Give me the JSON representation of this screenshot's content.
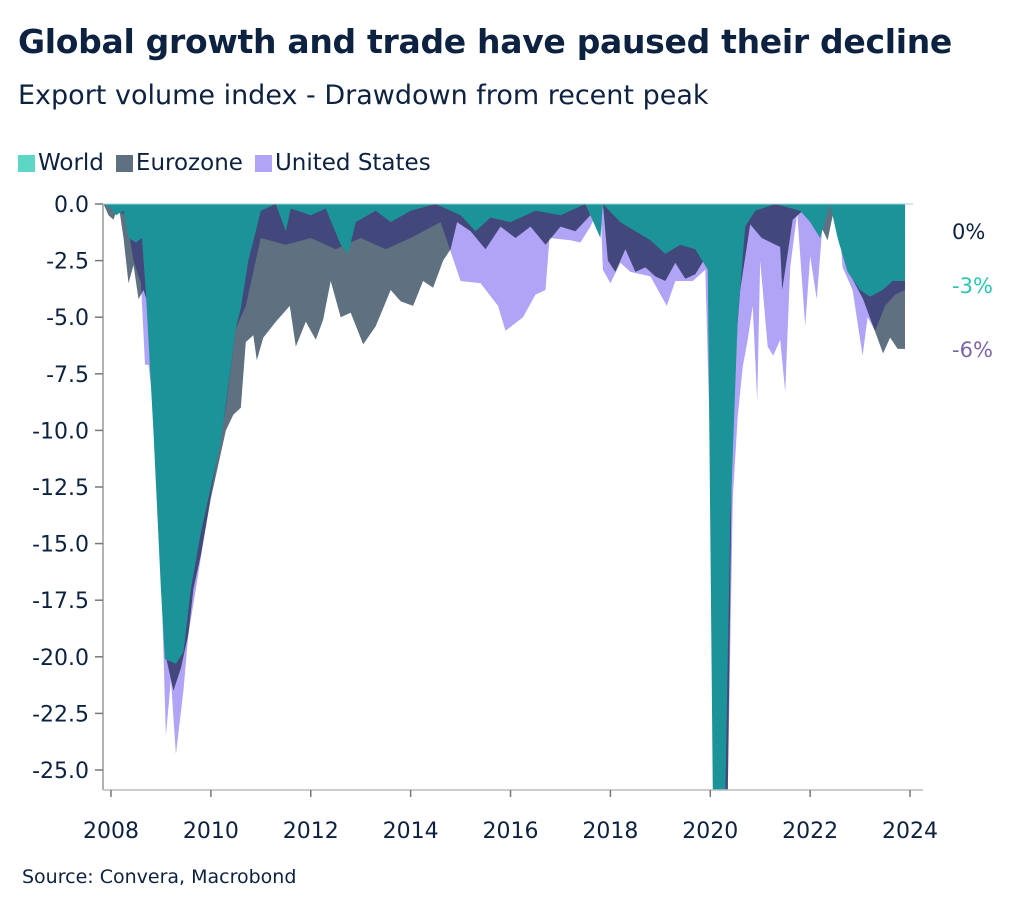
{
  "title": "Global growth and trade have paused their decline",
  "subtitle": "Export volume index - Drawdown from recent peak",
  "source": "Source: Convera, Macrobond",
  "end_labels": [
    {
      "text": "0%",
      "color": "#0d2240"
    },
    {
      "text": "-3%",
      "color": "#2cc6b0"
    },
    {
      "text": "-6%",
      "color": "#7d66a8"
    }
  ],
  "chart_data": {
    "type": "area",
    "title": "Global growth and trade have paused their decline",
    "subtitle": "Export volume index - Drawdown from recent peak",
    "xlabel": "",
    "ylabel": "",
    "xlim": [
      2007.85,
      2024.2
    ],
    "ylim": [
      -25.9,
      0
    ],
    "grid": false,
    "legend_position": "top-left",
    "x_ticks": [
      "2008",
      "2010",
      "2012",
      "2014",
      "2016",
      "2018",
      "2020",
      "2022",
      "2024"
    ],
    "y_ticks": [
      "0.0",
      "-2.5",
      "-5.0",
      "-7.5",
      "-10.0",
      "-12.5",
      "-15.0",
      "-17.5",
      "-20.0",
      "-22.5",
      "-25.0"
    ],
    "series": [
      {
        "name": "World",
        "legend_color": "#5ed6c6",
        "fill": "#1c9399",
        "points": [
          [
            2007.85,
            0
          ],
          [
            2008.0,
            -0.2
          ],
          [
            2008.1,
            -0.5
          ],
          [
            2008.25,
            -0.3
          ],
          [
            2008.35,
            -1.5
          ],
          [
            2008.5,
            -1.7
          ],
          [
            2008.62,
            -1.5
          ],
          [
            2008.7,
            -4
          ],
          [
            2008.85,
            -10
          ],
          [
            2009.0,
            -17
          ],
          [
            2009.08,
            -20.1
          ],
          [
            2009.3,
            -20.3
          ],
          [
            2009.45,
            -19.8
          ],
          [
            2009.6,
            -17
          ],
          [
            2009.8,
            -14.5
          ],
          [
            2010.0,
            -12.5
          ],
          [
            2010.2,
            -10.5
          ],
          [
            2010.35,
            -8
          ],
          [
            2010.5,
            -5.5
          ],
          [
            2010.6,
            -4.6
          ],
          [
            2010.75,
            -2.5
          ],
          [
            2010.9,
            -1.2
          ],
          [
            2011.0,
            -0.3
          ],
          [
            2011.3,
            0
          ],
          [
            2011.5,
            -1.2
          ],
          [
            2011.6,
            -0.2
          ],
          [
            2012.0,
            -0.5
          ],
          [
            2012.3,
            -0.2
          ],
          [
            2012.6,
            -1.8
          ],
          [
            2012.75,
            -2.2
          ],
          [
            2012.9,
            -0.8
          ],
          [
            2013.3,
            -0.3
          ],
          [
            2013.6,
            -0.8
          ],
          [
            2014.0,
            -0.3
          ],
          [
            2014.5,
            0
          ],
          [
            2015.0,
            -0.5
          ],
          [
            2015.3,
            -1.2
          ],
          [
            2015.6,
            -0.6
          ],
          [
            2016.0,
            -0.8
          ],
          [
            2016.5,
            -0.3
          ],
          [
            2017.0,
            -0.5
          ],
          [
            2017.5,
            0
          ],
          [
            2017.8,
            -1.5
          ],
          [
            2017.85,
            0
          ],
          [
            2018.2,
            -0.8
          ],
          [
            2018.5,
            -1.2
          ],
          [
            2018.8,
            -1.6
          ],
          [
            2019.1,
            -2.2
          ],
          [
            2019.4,
            -1.8
          ],
          [
            2019.7,
            -2.0
          ],
          [
            2019.95,
            -2.9
          ],
          [
            2020.05,
            -26
          ],
          [
            2020.3,
            -26
          ],
          [
            2020.4,
            -14
          ],
          [
            2020.55,
            -5.1
          ],
          [
            2020.7,
            -1
          ],
          [
            2020.9,
            -0.3
          ],
          [
            2021.3,
            0
          ],
          [
            2021.8,
            -0.3
          ],
          [
            2022.0,
            -0.8
          ],
          [
            2022.2,
            -1.5
          ],
          [
            2022.4,
            0
          ],
          [
            2022.55,
            -1.5
          ],
          [
            2022.75,
            -3
          ],
          [
            2023.0,
            -3.8
          ],
          [
            2023.2,
            -4.1
          ],
          [
            2023.45,
            -3.8
          ],
          [
            2023.65,
            -3.4
          ],
          [
            2023.9,
            -3.4
          ]
        ]
      },
      {
        "name": "Eurozone",
        "legend_color": "#5f7180",
        "fill": "#5f7180",
        "points": [
          [
            2007.85,
            0
          ],
          [
            2007.95,
            -0.5
          ],
          [
            2008.05,
            -0.7
          ],
          [
            2008.15,
            0
          ],
          [
            2008.25,
            -1.5
          ],
          [
            2008.35,
            -3.5
          ],
          [
            2008.45,
            -2.7
          ],
          [
            2008.55,
            -4.2
          ],
          [
            2008.65,
            -3.8
          ],
          [
            2008.75,
            -4.5
          ],
          [
            2008.85,
            -8
          ],
          [
            2009.0,
            -15
          ],
          [
            2009.1,
            -20
          ],
          [
            2009.25,
            -21.5
          ],
          [
            2009.4,
            -20.5
          ],
          [
            2009.55,
            -19
          ],
          [
            2009.65,
            -17
          ],
          [
            2009.8,
            -15.5
          ],
          [
            2010.0,
            -13
          ],
          [
            2010.15,
            -11.5
          ],
          [
            2010.3,
            -10
          ],
          [
            2010.45,
            -9.3
          ],
          [
            2010.6,
            -9
          ],
          [
            2010.7,
            -6.1
          ],
          [
            2010.85,
            -5.8
          ],
          [
            2010.92,
            -6.9
          ],
          [
            2011.05,
            -5.9
          ],
          [
            2011.3,
            -5.2
          ],
          [
            2011.58,
            -4.5
          ],
          [
            2011.7,
            -6.3
          ],
          [
            2011.9,
            -5.2
          ],
          [
            2012.1,
            -6.0
          ],
          [
            2012.25,
            -5.1
          ],
          [
            2012.4,
            -3.4
          ],
          [
            2012.6,
            -5.0
          ],
          [
            2012.8,
            -4.8
          ],
          [
            2013.05,
            -6.2
          ],
          [
            2013.3,
            -5.4
          ],
          [
            2013.6,
            -3.8
          ],
          [
            2013.8,
            -4.3
          ],
          [
            2014.05,
            -4.5
          ],
          [
            2014.25,
            -3.4
          ],
          [
            2014.45,
            -3.7
          ],
          [
            2014.65,
            -2.5
          ],
          [
            2014.8,
            -2
          ],
          [
            2014.93,
            -0.8
          ],
          [
            2015.2,
            -1.2
          ],
          [
            2015.5,
            -2
          ],
          [
            2015.8,
            -1
          ],
          [
            2016.1,
            -1.5
          ],
          [
            2016.4,
            -1
          ],
          [
            2016.7,
            -1.8
          ],
          [
            2017.0,
            -1
          ],
          [
            2017.3,
            -1.2
          ],
          [
            2017.6,
            -0.5
          ],
          [
            2017.85,
            0
          ],
          [
            2017.95,
            -2.5
          ],
          [
            2018.1,
            -3
          ],
          [
            2018.3,
            -2
          ],
          [
            2018.5,
            -3
          ],
          [
            2018.7,
            -2.8
          ],
          [
            2018.9,
            -3.2
          ],
          [
            2019.1,
            -3.4
          ],
          [
            2019.3,
            -2.6
          ],
          [
            2019.5,
            -3.3
          ],
          [
            2019.7,
            -3.1
          ],
          [
            2019.95,
            -2.2
          ],
          [
            2020.05,
            -20
          ],
          [
            2020.25,
            -26
          ],
          [
            2020.35,
            -26
          ],
          [
            2020.45,
            -8
          ],
          [
            2020.6,
            -3.8
          ],
          [
            2020.8,
            -0.9
          ],
          [
            2021.03,
            -1.5
          ],
          [
            2021.4,
            -1.9
          ],
          [
            2021.44,
            -3.8
          ],
          [
            2021.65,
            -0.7
          ],
          [
            2022.0,
            0
          ],
          [
            2022.35,
            -1.6
          ],
          [
            2022.5,
            0
          ],
          [
            2022.75,
            -2.9
          ],
          [
            2023.06,
            -4.2
          ],
          [
            2023.26,
            -5.4
          ],
          [
            2023.46,
            -6.6
          ],
          [
            2023.6,
            -5.9
          ],
          [
            2023.75,
            -6.4
          ],
          [
            2023.9,
            -6.4
          ]
        ]
      },
      {
        "name": "United States",
        "legend_color": "#b1a3f5",
        "fill": "#b1a3f5",
        "points": [
          [
            2007.85,
            0
          ],
          [
            2008.3,
            -0.5
          ],
          [
            2008.45,
            -2.5
          ],
          [
            2008.6,
            -3.5
          ],
          [
            2008.68,
            -7.1
          ],
          [
            2008.75,
            -7.1
          ],
          [
            2008.85,
            -9
          ],
          [
            2009.0,
            -16
          ],
          [
            2009.1,
            -23.5
          ],
          [
            2009.2,
            -21
          ],
          [
            2009.3,
            -24.3
          ],
          [
            2009.45,
            -21.5
          ],
          [
            2009.55,
            -19
          ],
          [
            2009.7,
            -17
          ],
          [
            2010.0,
            -12.8
          ],
          [
            2010.3,
            -9
          ],
          [
            2010.5,
            -5.5
          ],
          [
            2010.7,
            -4.5
          ],
          [
            2011.0,
            -1.5
          ],
          [
            2011.5,
            -1.8
          ],
          [
            2012.0,
            -1.5
          ],
          [
            2012.5,
            -2
          ],
          [
            2013.0,
            -1.5
          ],
          [
            2013.5,
            -2
          ],
          [
            2014.0,
            -1.5
          ],
          [
            2014.6,
            -0.8
          ],
          [
            2015.0,
            -3.4
          ],
          [
            2015.4,
            -3.5
          ],
          [
            2015.75,
            -4.5
          ],
          [
            2015.9,
            -5.6
          ],
          [
            2016.25,
            -5
          ],
          [
            2016.5,
            -4
          ],
          [
            2016.7,
            -3.8
          ],
          [
            2016.78,
            -1.5
          ],
          [
            2017.2,
            -1.6
          ],
          [
            2017.4,
            -1.7
          ],
          [
            2017.6,
            -1
          ],
          [
            2017.8,
            0
          ],
          [
            2017.85,
            -2.9
          ],
          [
            2018.0,
            -3.5
          ],
          [
            2018.2,
            -2.6
          ],
          [
            2018.4,
            -3.0
          ],
          [
            2018.8,
            -3.2
          ],
          [
            2019.13,
            -4.5
          ],
          [
            2019.3,
            -3.4
          ],
          [
            2019.65,
            -3.4
          ],
          [
            2019.9,
            -2.9
          ],
          [
            2020.05,
            -15
          ],
          [
            2020.25,
            -26
          ],
          [
            2020.35,
            -26
          ],
          [
            2020.45,
            -13
          ],
          [
            2020.55,
            -9.4
          ],
          [
            2020.65,
            -7.2
          ],
          [
            2020.75,
            -6
          ],
          [
            2020.85,
            -4.5
          ],
          [
            2020.94,
            -8.7
          ],
          [
            2021.0,
            -2.5
          ],
          [
            2021.15,
            -6.3
          ],
          [
            2021.26,
            -6.7
          ],
          [
            2021.4,
            -6
          ],
          [
            2021.5,
            -8.3
          ],
          [
            2021.6,
            -2.8
          ],
          [
            2021.74,
            -0.4
          ],
          [
            2021.9,
            -5.4
          ],
          [
            2022.0,
            -2.3
          ],
          [
            2022.13,
            -4.2
          ],
          [
            2022.25,
            -0.9
          ],
          [
            2022.4,
            0
          ],
          [
            2022.55,
            0
          ],
          [
            2022.65,
            -2.8
          ],
          [
            2022.85,
            -3.8
          ],
          [
            2023.05,
            -6.7
          ],
          [
            2023.15,
            -5
          ],
          [
            2023.3,
            -5.6
          ],
          [
            2023.5,
            -4.5
          ],
          [
            2023.7,
            -4
          ],
          [
            2023.9,
            -3.8
          ]
        ]
      }
    ]
  }
}
